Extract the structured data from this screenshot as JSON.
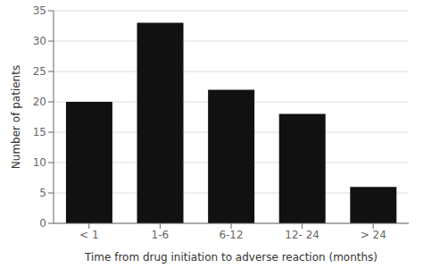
{
  "chart_data": {
    "type": "bar",
    "categories": [
      "< 1",
      "1-6",
      "6-12",
      "12- 24",
      "> 24"
    ],
    "values": [
      20,
      33,
      22,
      18,
      6
    ],
    "color": "#111111",
    "xlabel": "Time from drug initiation to adverse reaction (months)",
    "ylabel": "Number of patients",
    "ylim": [
      0,
      35
    ],
    "yticks": [
      0,
      5,
      10,
      15,
      20,
      25,
      30,
      35
    ],
    "grid": true
  }
}
